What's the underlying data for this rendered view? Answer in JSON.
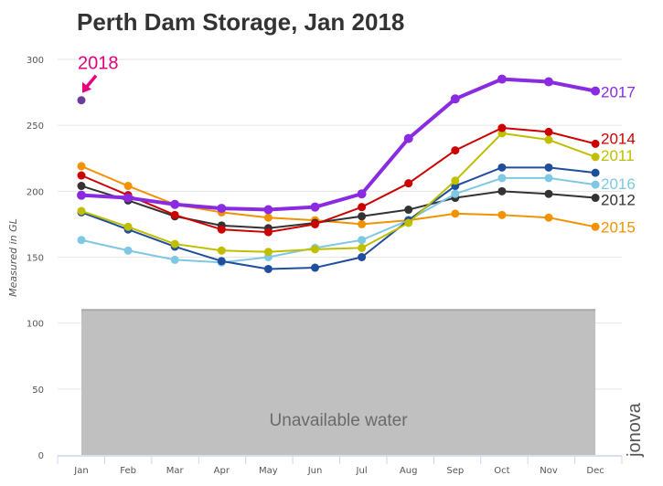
{
  "chart_data": {
    "type": "line",
    "title": "Perth Dam Storage, Jan 2018",
    "xlabel": "",
    "ylabel": "Measured in GL",
    "ylim": [
      0,
      300
    ],
    "yticks": [
      0,
      50,
      100,
      150,
      200,
      250,
      300
    ],
    "grid": true,
    "categories": [
      "Jan",
      "Feb",
      "Mar",
      "Apr",
      "May",
      "Jun",
      "Jul",
      "Aug",
      "Sep",
      "Oct",
      "Nov",
      "Dec"
    ],
    "band": {
      "label": "Unavailable water",
      "from": 0,
      "to": 110,
      "color": "#c0c0c0"
    },
    "series": [
      {
        "name": "2015",
        "color": "#f39200",
        "values": [
          219,
          204,
          190,
          184,
          180,
          178,
          175,
          178,
          183,
          182,
          180,
          173
        ]
      },
      {
        "name": "2012",
        "color": "#333333",
        "values": [
          204,
          193,
          181,
          174,
          172,
          176,
          181,
          186,
          195,
          200,
          198,
          195
        ]
      },
      {
        "name": "2016",
        "color": "#7ec8e3",
        "values": [
          163,
          155,
          148,
          146,
          150,
          157,
          163,
          178,
          198,
          210,
          210,
          205
        ]
      },
      {
        "name": "",
        "color": "#1f4e9c",
        "values": [
          184,
          171,
          158,
          147,
          141,
          142,
          150,
          178,
          204,
          218,
          218,
          214
        ]
      },
      {
        "name": "2011",
        "color": "#bfbf00",
        "values": [
          185,
          173,
          160,
          155,
          154,
          156,
          157,
          176,
          208,
          244,
          239,
          226
        ]
      },
      {
        "name": "2014",
        "color": "#cc0000",
        "values": [
          212,
          197,
          182,
          171,
          169,
          175,
          188,
          206,
          231,
          248,
          245,
          236
        ]
      },
      {
        "name": "2017",
        "color": "#8a2be2",
        "values": [
          197,
          195,
          190,
          187,
          186,
          188,
          198,
          240,
          270,
          285,
          283,
          276
        ]
      },
      {
        "name": "2018",
        "color": "#6a3d9a",
        "values": [
          269,
          null,
          null,
          null,
          null,
          null,
          null,
          null,
          null,
          null,
          null,
          null
        ]
      }
    ],
    "series_labels": [
      {
        "name": "2017",
        "color": "#8a2be2"
      },
      {
        "name": "2014",
        "color": "#cc0000"
      },
      {
        "name": "2011",
        "color": "#bfbf00"
      },
      {
        "name": "2016",
        "color": "#7ec8e3"
      },
      {
        "name": "2012",
        "color": "#333333"
      },
      {
        "name": "2015",
        "color": "#f39200"
      }
    ],
    "annotation": {
      "text": "2018",
      "color": "#e6007e",
      "points_to": {
        "category": "Jan",
        "value": 269
      }
    },
    "watermark": "jonova"
  }
}
